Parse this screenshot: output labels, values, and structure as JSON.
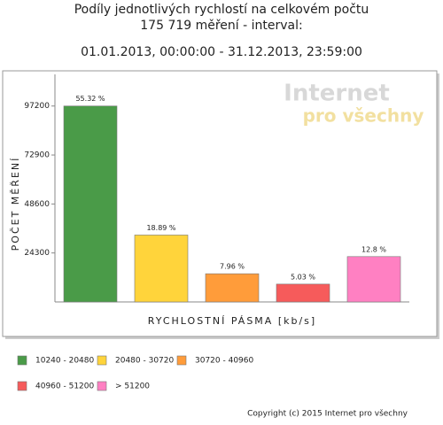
{
  "chart_data": {
    "type": "bar",
    "title": "Podíly jednotlivých rychlostí na celkovém počtu",
    "subtitle": "175 719 měření - interval:",
    "date_range": "01.01.2013, 00:00:00 - 31.12.2013, 23:59:00",
    "y_label": "POČET MĚŘENÍ",
    "x_label": "RYCHLOSTNÍ PÁSMA [kb/s]",
    "categories": [
      "10240 - 20480",
      "20480 - 30720",
      "30720 - 40960",
      "40960 - 51200",
      "> 51200"
    ],
    "values": [
      97208,
      33193,
      13987,
      8839,
      22492
    ],
    "value_labels": [
      "55.32 %",
      "18.89 %",
      "7.96 %",
      "5.03 %",
      "12.8 %"
    ],
    "colors": [
      "#4a9b48",
      "#ffd43b",
      "#ff9c3a",
      "#f65b5b",
      "#ff80c2"
    ],
    "ylim": [
      0,
      112900
    ],
    "yticks": [
      24300,
      48600,
      72900,
      97200
    ],
    "grid": false,
    "watermark": [
      "Internet",
      "pro všechny"
    ],
    "copyright": "Copyright (c) 2015 Internet pro všechny"
  }
}
